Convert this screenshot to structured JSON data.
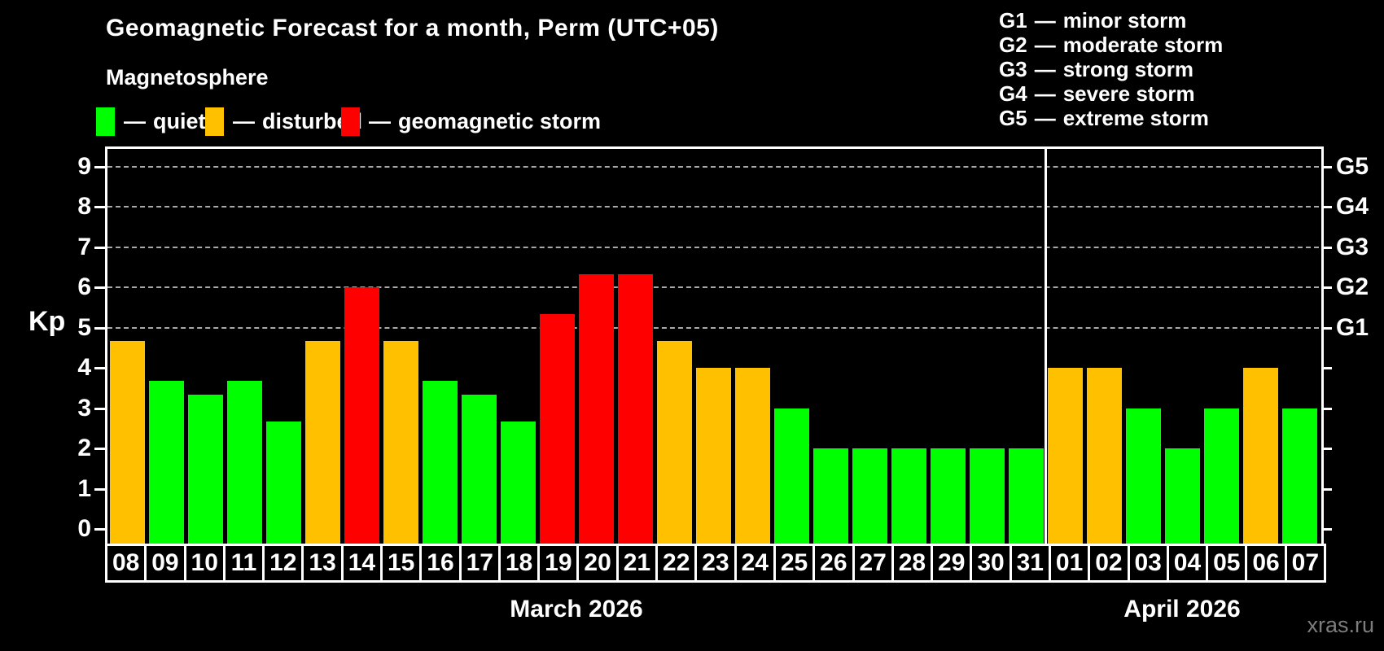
{
  "header": {
    "title": "Geomagnetic Forecast for a month, Perm (UTC+05)",
    "subtitle": "Magnetosphere",
    "dash": "—",
    "legend": [
      {
        "status": "quiet",
        "label": "quiet"
      },
      {
        "status": "disturbed",
        "label": "disturbed"
      },
      {
        "status": "storm",
        "label": "geomagnetic storm"
      }
    ],
    "g_legend": [
      {
        "code": "G1",
        "desc": "minor storm"
      },
      {
        "code": "G2",
        "desc": "moderate storm"
      },
      {
        "code": "G3",
        "desc": "strong storm"
      },
      {
        "code": "G4",
        "desc": "severe storm"
      },
      {
        "code": "G5",
        "desc": "extreme storm"
      }
    ]
  },
  "watermark": "xras.ru",
  "chart_data": {
    "type": "bar",
    "title": "Geomagnetic Forecast for a month, Perm (UTC+05)",
    "ylabel": "Kp",
    "ylim": [
      0,
      9.5
    ],
    "yticks": [
      0,
      1,
      2,
      3,
      4,
      5,
      6,
      7,
      8,
      9
    ],
    "grid": "horizontal dashed lines at Kp 5-9 only",
    "legend_position": "top",
    "g_levels": [
      {
        "kp": 5,
        "label": "G1"
      },
      {
        "kp": 6,
        "label": "G2"
      },
      {
        "kp": 7,
        "label": "G3"
      },
      {
        "kp": 8,
        "label": "G4"
      },
      {
        "kp": 9,
        "label": "G5"
      }
    ],
    "status_colors": {
      "quiet": "#00ff00",
      "disturbed": "#ffc000",
      "storm": "#ff0000"
    },
    "months": [
      "March 2026",
      "April 2026"
    ],
    "bars": [
      {
        "month": "March 2026",
        "day": "08",
        "kp": 4.67,
        "status": "disturbed"
      },
      {
        "month": "March 2026",
        "day": "09",
        "kp": 3.67,
        "status": "quiet"
      },
      {
        "month": "March 2026",
        "day": "10",
        "kp": 3.33,
        "status": "quiet"
      },
      {
        "month": "March 2026",
        "day": "11",
        "kp": 3.67,
        "status": "quiet"
      },
      {
        "month": "March 2026",
        "day": "12",
        "kp": 2.67,
        "status": "quiet"
      },
      {
        "month": "March 2026",
        "day": "13",
        "kp": 4.67,
        "status": "disturbed"
      },
      {
        "month": "March 2026",
        "day": "14",
        "kp": 6.0,
        "status": "storm"
      },
      {
        "month": "March 2026",
        "day": "15",
        "kp": 4.67,
        "status": "disturbed"
      },
      {
        "month": "March 2026",
        "day": "16",
        "kp": 3.67,
        "status": "quiet"
      },
      {
        "month": "March 2026",
        "day": "17",
        "kp": 3.33,
        "status": "quiet"
      },
      {
        "month": "March 2026",
        "day": "18",
        "kp": 2.67,
        "status": "quiet"
      },
      {
        "month": "March 2026",
        "day": "19",
        "kp": 5.33,
        "status": "storm"
      },
      {
        "month": "March 2026",
        "day": "20",
        "kp": 6.33,
        "status": "storm"
      },
      {
        "month": "March 2026",
        "day": "21",
        "kp": 6.33,
        "status": "storm"
      },
      {
        "month": "March 2026",
        "day": "22",
        "kp": 4.67,
        "status": "disturbed"
      },
      {
        "month": "March 2026",
        "day": "23",
        "kp": 4.0,
        "status": "disturbed"
      },
      {
        "month": "March 2026",
        "day": "24",
        "kp": 4.0,
        "status": "disturbed"
      },
      {
        "month": "March 2026",
        "day": "25",
        "kp": 3.0,
        "status": "quiet"
      },
      {
        "month": "March 2026",
        "day": "26",
        "kp": 2.0,
        "status": "quiet"
      },
      {
        "month": "March 2026",
        "day": "27",
        "kp": 2.0,
        "status": "quiet"
      },
      {
        "month": "March 2026",
        "day": "28",
        "kp": 2.0,
        "status": "quiet"
      },
      {
        "month": "March 2026",
        "day": "29",
        "kp": 2.0,
        "status": "quiet"
      },
      {
        "month": "March 2026",
        "day": "30",
        "kp": 2.0,
        "status": "quiet"
      },
      {
        "month": "March 2026",
        "day": "31",
        "kp": 2.0,
        "status": "quiet"
      },
      {
        "month": "April 2026",
        "day": "01",
        "kp": 4.0,
        "status": "disturbed"
      },
      {
        "month": "April 2026",
        "day": "02",
        "kp": 4.0,
        "status": "disturbed"
      },
      {
        "month": "April 2026",
        "day": "03",
        "kp": 3.0,
        "status": "quiet"
      },
      {
        "month": "April 2026",
        "day": "04",
        "kp": 2.0,
        "status": "quiet"
      },
      {
        "month": "April 2026",
        "day": "05",
        "kp": 3.0,
        "status": "quiet"
      },
      {
        "month": "April 2026",
        "day": "06",
        "kp": 4.0,
        "status": "disturbed"
      },
      {
        "month": "April 2026",
        "day": "07",
        "kp": 3.0,
        "status": "quiet"
      }
    ]
  }
}
